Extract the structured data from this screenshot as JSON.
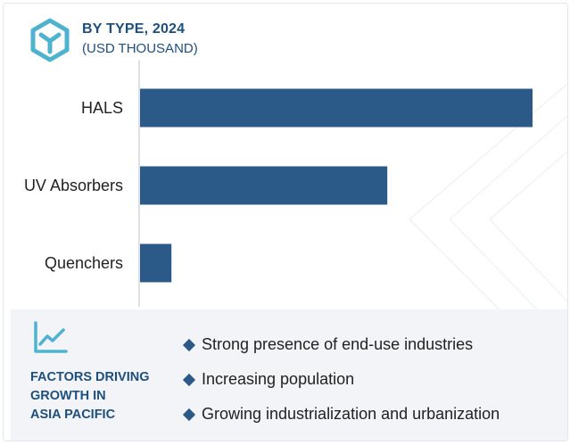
{
  "header": {
    "title": "BY TYPE, 2024",
    "subtitle": "(USD THOUSAND)"
  },
  "chart_data": {
    "type": "bar",
    "orientation": "horizontal",
    "title": "BY TYPE, 2024",
    "subtitle": "(USD THOUSAND)",
    "categories": [
      "HALS",
      "UV Absorbers",
      "Quenchers"
    ],
    "values": [
      100,
      63,
      8
    ],
    "xlim": [
      0,
      100
    ],
    "grid": false,
    "legend": "none",
    "bar_color": "#2b5a88",
    "value_labels_shown": false
  },
  "panel": {
    "heading_lines": [
      "FACTORS DRIVING",
      "GROWTH IN",
      "ASIA PACIFIC"
    ],
    "bullets": [
      "Strong presence of end-use industries",
      "Increasing population",
      "Growing industrialization and urbanization"
    ]
  },
  "colors": {
    "accent": "#1f4f7c",
    "bar": "#2b5a88",
    "icon": "#4fb3cf",
    "panel_bg": "#f2f4f7"
  },
  "icons": {
    "logo": "hexagon-y-logo-icon",
    "trend": "line-chart-icon",
    "bullet": "diamond-bullet-icon"
  }
}
